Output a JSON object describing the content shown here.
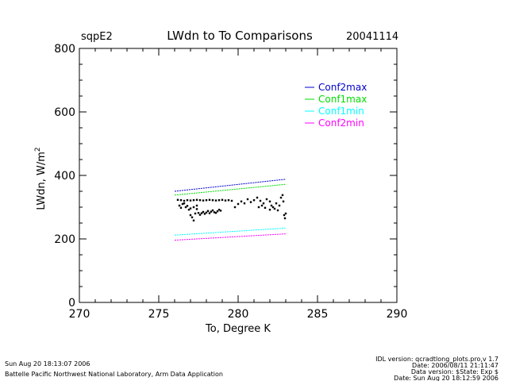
{
  "header": {
    "site": "sqpE2",
    "title": "LWdn to To Comparisons",
    "date": "20041114"
  },
  "footer": {
    "left_line1": "Sun Aug 20 18:13:07 2006",
    "left_line2": "Battelle Pacific Northwest National Laboratory, Arm Data Application",
    "right_line1": "IDL version: qcradtlong_plots.pro,v 1.7",
    "right_line2": "Date: 2006/08/11 21:11:47",
    "right_line3": "Data version: $State: Exp $",
    "right_line4": "Date: Sun Aug 20 18:12:59 2006"
  },
  "chart_data": {
    "type": "scatter",
    "xlabel": "To, Degree K",
    "ylabel": "LWdn, W/m",
    "ylabel_superscript": "2",
    "xlim": [
      270,
      290
    ],
    "ylim": [
      0,
      800
    ],
    "x_ticks": [
      270,
      275,
      280,
      285,
      290
    ],
    "y_ticks": [
      0,
      200,
      400,
      600,
      800
    ],
    "x_minor_step": 1,
    "y_minor_step": 50,
    "grid": false,
    "legend_position": "upper-right",
    "series": [
      {
        "name": "Conf2max",
        "kind": "line",
        "color": "#0000cc",
        "x": [
          276,
          283
        ],
        "y": [
          350,
          388
        ]
      },
      {
        "name": "Conf1max",
        "kind": "line",
        "color": "#00dd00",
        "x": [
          276,
          283
        ],
        "y": [
          338,
          372
        ]
      },
      {
        "name": "Conf1min",
        "kind": "line",
        "color": "#00ffff",
        "x": [
          276,
          283
        ],
        "y": [
          212,
          234
        ]
      },
      {
        "name": "Conf2min",
        "kind": "line",
        "color": "#ff00ff",
        "x": [
          276,
          283
        ],
        "y": [
          196,
          216
        ]
      }
    ],
    "observations": {
      "color": "#000000",
      "points": [
        [
          276.2,
          323
        ],
        [
          276.4,
          322
        ],
        [
          276.6,
          320
        ],
        [
          276.8,
          322
        ],
        [
          277.0,
          321
        ],
        [
          277.2,
          322
        ],
        [
          277.4,
          323
        ],
        [
          277.6,
          322
        ],
        [
          277.8,
          321
        ],
        [
          278.0,
          322
        ],
        [
          278.2,
          323
        ],
        [
          278.4,
          322
        ],
        [
          278.6,
          321
        ],
        [
          278.8,
          322
        ],
        [
          279.0,
          323
        ],
        [
          279.2,
          321
        ],
        [
          279.4,
          322
        ],
        [
          279.6,
          320
        ],
        [
          276.3,
          305
        ],
        [
          276.5,
          310
        ],
        [
          276.7,
          300
        ],
        [
          276.9,
          292
        ],
        [
          277.0,
          275
        ],
        [
          277.1,
          268
        ],
        [
          277.2,
          258
        ],
        [
          277.3,
          280
        ],
        [
          277.4,
          294
        ],
        [
          277.5,
          282
        ],
        [
          277.6,
          276
        ],
        [
          277.7,
          281
        ],
        [
          277.8,
          285
        ],
        [
          277.9,
          279
        ],
        [
          278.0,
          283
        ],
        [
          278.1,
          288
        ],
        [
          278.2,
          281
        ],
        [
          278.3,
          286
        ],
        [
          278.4,
          290
        ],
        [
          278.5,
          284
        ],
        [
          278.6,
          282
        ],
        [
          278.7,
          287
        ],
        [
          278.8,
          292
        ],
        [
          278.9,
          289
        ],
        [
          276.4,
          298
        ],
        [
          276.6,
          312
        ],
        [
          276.8,
          304
        ],
        [
          277.0,
          296
        ],
        [
          277.2,
          300
        ],
        [
          277.4,
          305
        ],
        [
          279.8,
          300
        ],
        [
          280.0,
          310
        ],
        [
          280.2,
          318
        ],
        [
          280.4,
          312
        ],
        [
          280.6,
          325
        ],
        [
          280.8,
          316
        ],
        [
          281.0,
          322
        ],
        [
          281.2,
          330
        ],
        [
          281.4,
          320
        ],
        [
          281.6,
          312
        ],
        [
          281.8,
          325
        ],
        [
          282.0,
          318
        ],
        [
          282.1,
          305
        ],
        [
          282.2,
          300
        ],
        [
          282.3,
          295
        ],
        [
          282.4,
          312
        ],
        [
          282.5,
          290
        ],
        [
          282.6,
          305
        ],
        [
          282.7,
          330
        ],
        [
          282.8,
          338
        ],
        [
          282.85,
          318
        ],
        [
          282.9,
          275
        ],
        [
          282.95,
          265
        ],
        [
          283.0,
          280
        ],
        [
          281.5,
          305
        ],
        [
          281.3,
          300
        ],
        [
          281.7,
          298
        ],
        [
          282.0,
          292
        ]
      ]
    }
  }
}
